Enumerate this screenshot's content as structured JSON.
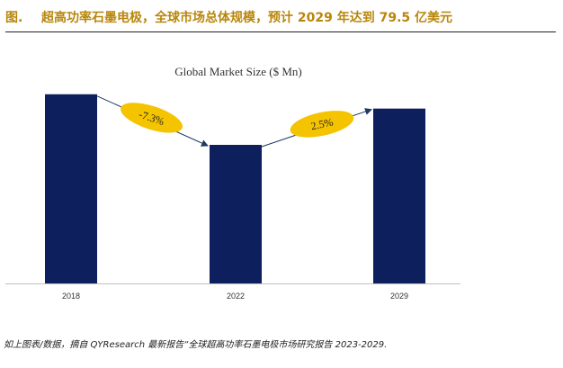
{
  "header": {
    "figure_label": "图.",
    "title": "超高功率石墨电极，全球市场总体规模，预计 2029 年达到 79.5 亿美元"
  },
  "chart_data": {
    "type": "bar",
    "title": "Global Market Size ($ Mn)",
    "categories": [
      "2018",
      "2022",
      "2029"
    ],
    "values": [
      8600,
      6300,
      7950
    ],
    "ylim": [
      0,
      9000
    ],
    "xlabel": "",
    "ylabel": "",
    "grid": false,
    "bar_color": "#0d1f5c",
    "growth_labels": [
      "-7.3%",
      "2.5%"
    ],
    "growth_color": "#f5c400"
  },
  "source": "如上图表/数据，摘自 QYResearch 最新报告“全球超高功率石墨电极市场研究报告 2023-2029."
}
